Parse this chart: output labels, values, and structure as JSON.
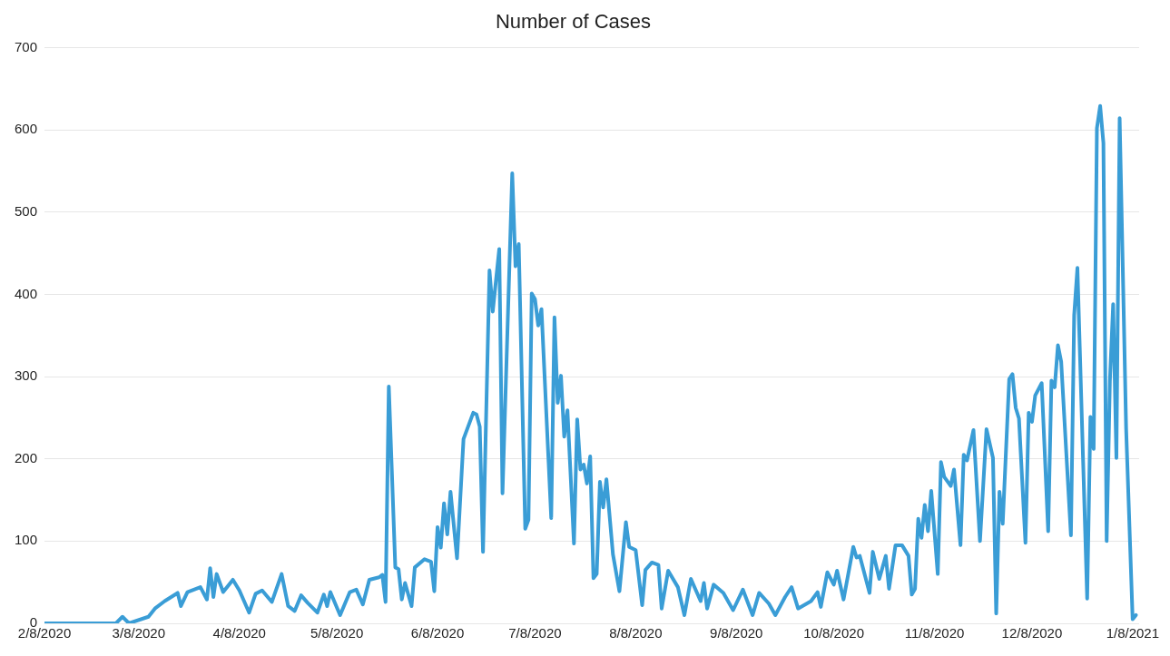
{
  "chart_data": {
    "type": "line",
    "title": "Number of Cases",
    "x": [
      "2020-02-08",
      "2020-03-01",
      "2020-03-03",
      "2020-03-05",
      "2020-03-11",
      "2020-03-13",
      "2020-03-16",
      "2020-03-20",
      "2020-03-21",
      "2020-03-23",
      "2020-03-27",
      "2020-03-29",
      "2020-03-30",
      "2020-03-31",
      "2020-04-01",
      "2020-04-03",
      "2020-04-06",
      "2020-04-08",
      "2020-04-11",
      "2020-04-13",
      "2020-04-15",
      "2020-04-18",
      "2020-04-21",
      "2020-04-23",
      "2020-04-25",
      "2020-04-27",
      "2020-04-29",
      "2020-05-02",
      "2020-05-04",
      "2020-05-05",
      "2020-05-06",
      "2020-05-09",
      "2020-05-12",
      "2020-05-14",
      "2020-05-16",
      "2020-05-18",
      "2020-05-21",
      "2020-05-22",
      "2020-05-23",
      "2020-05-24",
      "2020-05-26",
      "2020-05-27",
      "2020-05-28",
      "2020-05-29",
      "2020-05-31",
      "2020-06-01",
      "2020-06-04",
      "2020-06-06",
      "2020-06-07",
      "2020-06-08",
      "2020-06-09",
      "2020-06-10",
      "2020-06-11",
      "2020-06-12",
      "2020-06-14",
      "2020-06-16",
      "2020-06-19",
      "2020-06-20",
      "2020-06-21",
      "2020-06-22",
      "2020-06-24",
      "2020-06-25",
      "2020-06-27",
      "2020-06-28",
      "2020-07-01",
      "2020-07-02",
      "2020-07-03",
      "2020-07-05",
      "2020-07-06",
      "2020-07-07",
      "2020-07-08",
      "2020-07-09",
      "2020-07-10",
      "2020-07-13",
      "2020-07-14",
      "2020-07-15",
      "2020-07-16",
      "2020-07-17",
      "2020-07-18",
      "2020-07-20",
      "2020-07-21",
      "2020-07-22",
      "2020-07-23",
      "2020-07-24",
      "2020-07-25",
      "2020-07-26",
      "2020-07-27",
      "2020-07-28",
      "2020-07-29",
      "2020-07-30",
      "2020-08-01",
      "2020-08-03",
      "2020-08-05",
      "2020-08-06",
      "2020-08-08",
      "2020-08-10",
      "2020-08-11",
      "2020-08-13",
      "2020-08-15",
      "2020-08-16",
      "2020-08-18",
      "2020-08-21",
      "2020-08-23",
      "2020-08-25",
      "2020-08-28",
      "2020-08-29",
      "2020-08-30",
      "2020-09-01",
      "2020-09-04",
      "2020-09-07",
      "2020-09-10",
      "2020-09-13",
      "2020-09-15",
      "2020-09-18",
      "2020-09-20",
      "2020-09-23",
      "2020-09-25",
      "2020-09-27",
      "2020-10-01",
      "2020-10-03",
      "2020-10-04",
      "2020-10-06",
      "2020-10-08",
      "2020-10-09",
      "2020-10-11",
      "2020-10-14",
      "2020-10-15",
      "2020-10-16",
      "2020-10-19",
      "2020-10-20",
      "2020-10-22",
      "2020-10-24",
      "2020-10-25",
      "2020-10-27",
      "2020-10-29",
      "2020-10-31",
      "2020-11-01",
      "2020-11-02",
      "2020-11-03",
      "2020-11-04",
      "2020-11-05",
      "2020-11-06",
      "2020-11-07",
      "2020-11-09",
      "2020-11-10",
      "2020-11-11",
      "2020-11-13",
      "2020-11-14",
      "2020-11-16",
      "2020-11-17",
      "2020-11-18",
      "2020-11-20",
      "2020-11-22",
      "2020-11-24",
      "2020-11-26",
      "2020-11-27",
      "2020-11-28",
      "2020-11-29",
      "2020-12-01",
      "2020-12-02",
      "2020-12-03",
      "2020-12-04",
      "2020-12-06",
      "2020-12-07",
      "2020-12-08",
      "2020-12-09",
      "2020-12-11",
      "2020-12-13",
      "2020-12-14",
      "2020-12-15",
      "2020-12-16",
      "2020-12-17",
      "2020-12-20",
      "2020-12-21",
      "2020-12-22",
      "2020-12-25",
      "2020-12-26",
      "2020-12-27",
      "2020-12-28",
      "2020-12-29",
      "2020-12-30",
      "2020-12-31",
      "2021-01-01",
      "2021-01-02",
      "2021-01-03",
      "2021-01-04",
      "2021-01-06",
      "2021-01-08",
      "2021-01-09"
    ],
    "series": [
      {
        "color": "#3a9dd6",
        "values": [
          0,
          0,
          8,
          0,
          8,
          18,
          27,
          37,
          21,
          38,
          44,
          29,
          67,
          32,
          60,
          38,
          53,
          40,
          13,
          36,
          40,
          26,
          60,
          21,
          15,
          34,
          25,
          13,
          35,
          21,
          38,
          10,
          38,
          41,
          23,
          53,
          56,
          59,
          26,
          288,
          68,
          66,
          29,
          49,
          21,
          68,
          78,
          75,
          39,
          117,
          92,
          146,
          108,
          160,
          79,
          224,
          256,
          254,
          239,
          87,
          429,
          379,
          455,
          158,
          547,
          434,
          461,
          115,
          126,
          401,
          394,
          362,
          382,
          128,
          372,
          268,
          301,
          227,
          259,
          97,
          248,
          187,
          193,
          170,
          203,
          55,
          60,
          172,
          141,
          175,
          84,
          39,
          123,
          93,
          89,
          22,
          65,
          74,
          71,
          18,
          64,
          44,
          10,
          54,
          27,
          49,
          18,
          47,
          37,
          16,
          41,
          10,
          37,
          24,
          10,
          32,
          44,
          18,
          27,
          38,
          20,
          62,
          47,
          64,
          29,
          93,
          80,
          82,
          37,
          87,
          54,
          82,
          42,
          95,
          95,
          82,
          35,
          42,
          127,
          104,
          144,
          112,
          161,
          60,
          196,
          178,
          167,
          187,
          95,
          205,
          198,
          235,
          100,
          236,
          201,
          12,
          160,
          121,
          297,
          303,
          262,
          249,
          98,
          256,
          245,
          277,
          292,
          112,
          295,
          287,
          338,
          318,
          107,
          375,
          432,
          30,
          251,
          212,
          602,
          629,
          584,
          100,
          295,
          388,
          201,
          614,
          236,
          5,
          10
        ]
      }
    ],
    "xlim": [
      "2020-02-08",
      "2021-01-10"
    ],
    "xticks": [
      {
        "value": "2020-02-08",
        "label": "2/8/2020"
      },
      {
        "value": "2020-03-08",
        "label": "3/8/2020"
      },
      {
        "value": "2020-04-08",
        "label": "4/8/2020"
      },
      {
        "value": "2020-05-08",
        "label": "5/8/2020"
      },
      {
        "value": "2020-06-08",
        "label": "6/8/2020"
      },
      {
        "value": "2020-07-08",
        "label": "7/8/2020"
      },
      {
        "value": "2020-08-08",
        "label": "8/8/2020"
      },
      {
        "value": "2020-09-08",
        "label": "9/8/2020"
      },
      {
        "value": "2020-10-08",
        "label": "10/8/2020"
      },
      {
        "value": "2020-11-08",
        "label": "11/8/2020"
      },
      {
        "value": "2020-12-08",
        "label": "12/8/2020"
      },
      {
        "value": "2021-01-08",
        "label": "1/8/2021"
      }
    ],
    "ylim": [
      0,
      700
    ],
    "yticks": [
      0,
      100,
      200,
      300,
      400,
      500,
      600,
      700
    ],
    "grid": "y",
    "legend": false,
    "marker": "none",
    "line_style": "solid"
  }
}
